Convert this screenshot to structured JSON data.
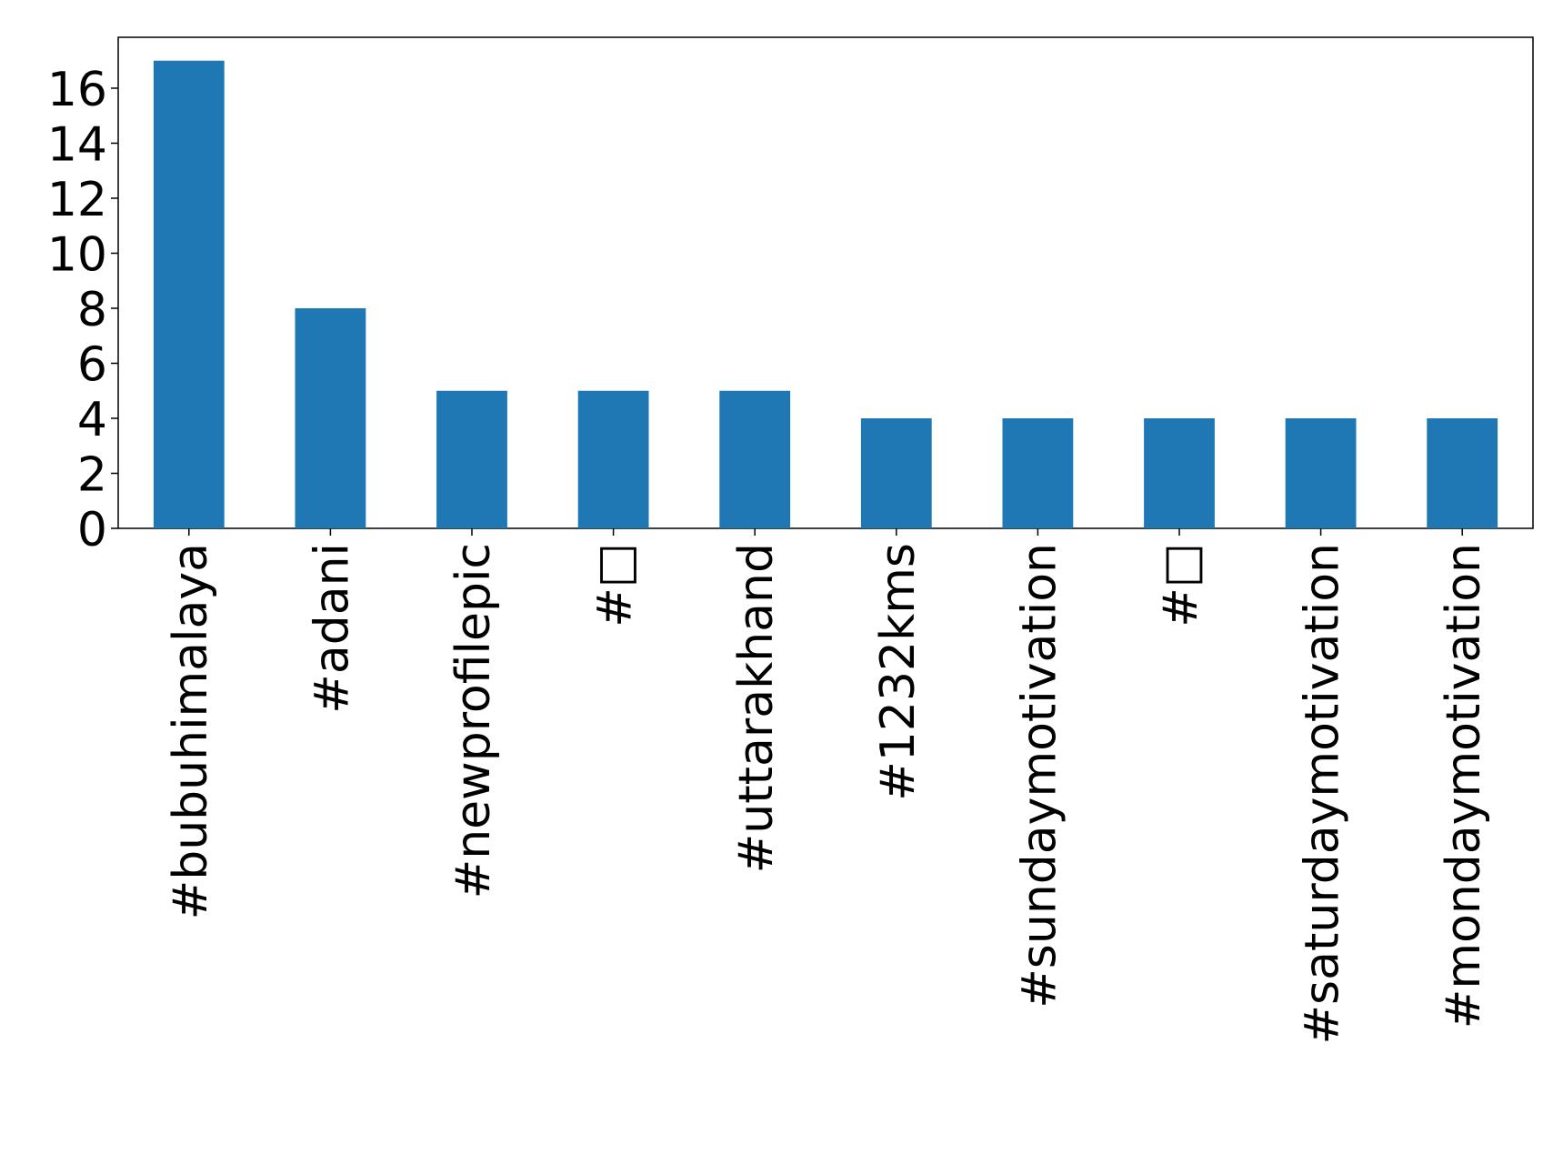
{
  "chart_data": {
    "type": "bar",
    "categories": [
      "#bubuhimalaya",
      "#adani",
      "#newprofilepic",
      "#□",
      "#uttarakhand",
      "#1232kms",
      "#sundaymotivation",
      "#□",
      "#saturdaymotivation",
      "#mondaymotivation"
    ],
    "values": [
      17,
      8,
      5,
      5,
      5,
      4,
      4,
      4,
      4,
      4
    ],
    "color": "#1f77b4",
    "ylim": [
      0,
      17.85
    ],
    "yticks": [
      0,
      2,
      4,
      6,
      8,
      10,
      12,
      14,
      16
    ],
    "grid": false
  }
}
